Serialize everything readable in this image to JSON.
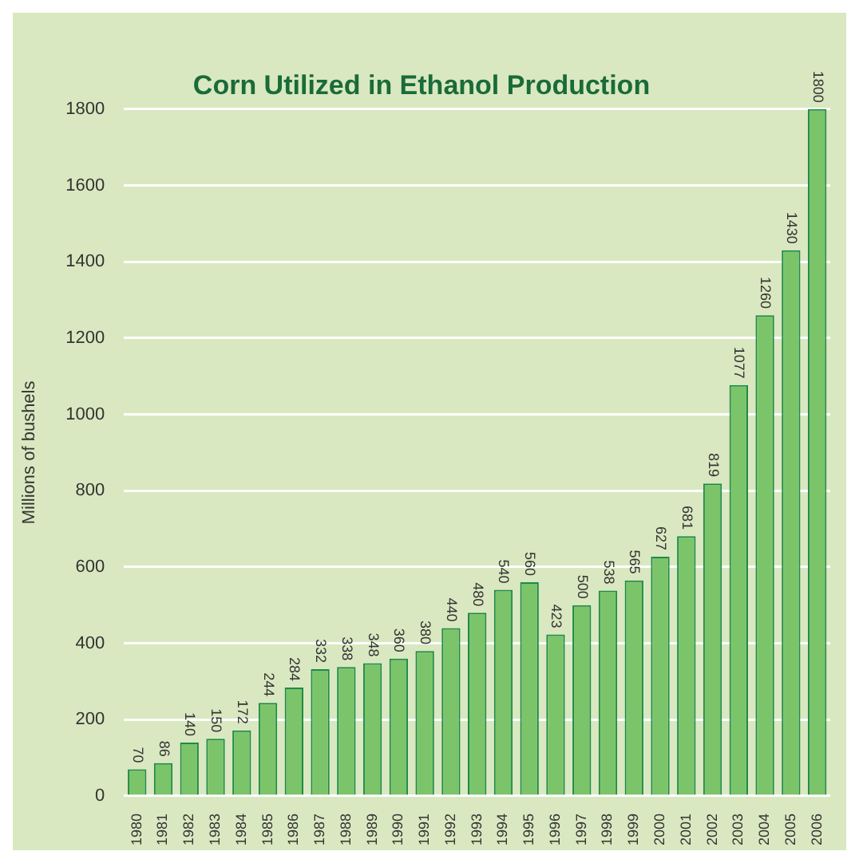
{
  "chart_data": {
    "type": "bar",
    "title": "Corn Utilized in Ethanol Production",
    "ylabel": "Millions of bushels",
    "categories": [
      "1980",
      "1981",
      "1982",
      "1983",
      "1984",
      "1985",
      "1986",
      "1987",
      "1988",
      "1989",
      "1990",
      "1991",
      "1992",
      "1993",
      "1994",
      "1995",
      "1996",
      "1997",
      "1998",
      "1999",
      "2000",
      "2001",
      "2002",
      "2003",
      "2004",
      "2005",
      "2006"
    ],
    "values": [
      70,
      86,
      140,
      150,
      172,
      244,
      284,
      332,
      338,
      348,
      360,
      380,
      440,
      480,
      540,
      560,
      423,
      500,
      538,
      565,
      627,
      681,
      819,
      1077,
      1260,
      1430,
      1800
    ],
    "color": "#7cc46a",
    "data_labels": true,
    "ylim": [
      0,
      1800
    ],
    "yticks": [
      0,
      200,
      400,
      600,
      800,
      1000,
      1200,
      1400,
      1600,
      1800
    ],
    "grid": "y"
  }
}
